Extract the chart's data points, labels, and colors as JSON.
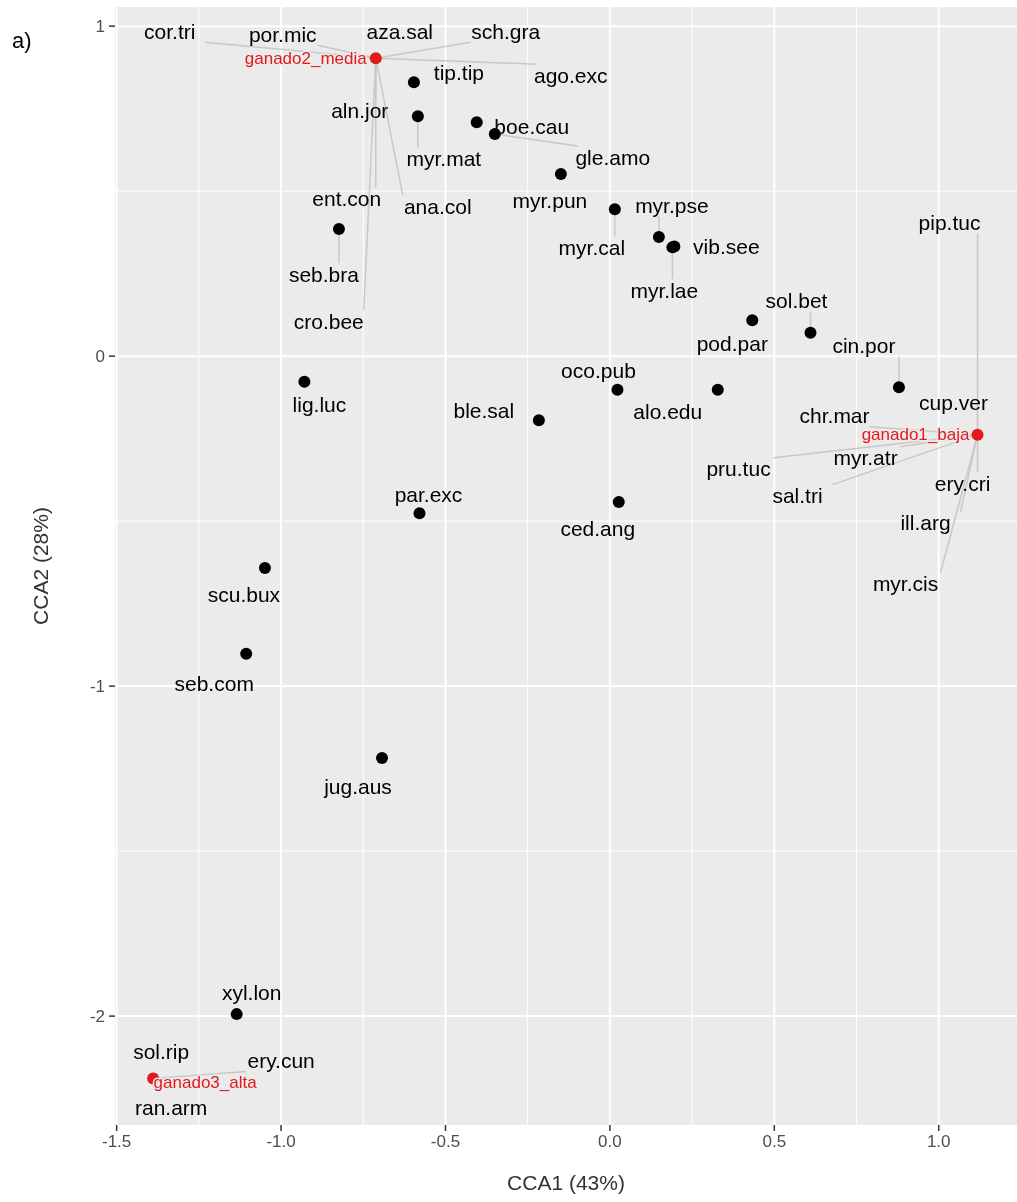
{
  "chart_data": {
    "type": "scatter",
    "title": "a)",
    "xlabel": "CCA1 (43%)",
    "ylabel": "CCA2 (28%)",
    "xlim": [
      -1.505,
      1.238
    ],
    "ylim": [
      -2.33,
      1.058
    ],
    "xticks": [
      {
        "value": -1.5,
        "label": "-1.5"
      },
      {
        "value": -1,
        "label": "-1.0"
      },
      {
        "value": -0.5,
        "label": "-0.5"
      },
      {
        "value": 0,
        "label": "0.0"
      },
      {
        "value": 0.5,
        "label": "0.5"
      },
      {
        "value": 1,
        "label": "1.0"
      }
    ],
    "yticks": [
      -2,
      -1,
      0,
      1
    ],
    "grid": true,
    "marker": "circle",
    "series": [
      {
        "color": "#000000",
        "x": [
          -0.596,
          -0.584,
          -0.405,
          -0.35,
          -0.149,
          -0.824,
          0.015,
          0.149,
          0.196,
          0.19,
          0.61,
          0.433,
          0.879,
          0.023,
          0.328,
          -0.216,
          0.027,
          -0.929,
          -0.579,
          -1.049,
          -1.106,
          -0.693,
          -1.135
        ],
        "values": [
          0.83,
          0.727,
          0.709,
          0.673,
          0.552,
          0.385,
          0.445,
          0.361,
          0.332,
          0.33,
          0.071,
          0.109,
          -0.094,
          -0.102,
          -0.102,
          -0.194,
          -0.442,
          -0.078,
          -0.476,
          -0.642,
          -0.902,
          -1.218,
          -1.994
        ],
        "value_labels": [
          "tip.tip",
          "myr.mat",
          "boe.cau",
          "gle.amo",
          "myr.pun",
          "seb.bra",
          "myr.cal",
          "myr.pse",
          "vib.see",
          "myr.lae",
          "sol.bet",
          "pod.par",
          "cin.por",
          "oco.pub",
          "alo.edu",
          "ble.sal",
          "ced.ang",
          "lig.luc",
          "par.exc",
          "scu.bux",
          "seb.com",
          "jug.aus",
          "xyl.lon"
        ]
      },
      {
        "name": "ganado2_media",
        "color": "#e31a1c",
        "x": [
          -0.712
        ],
        "values": [
          0.903
        ]
      },
      {
        "name": "ganado1_baja",
        "color": "#e31a1c",
        "x": [
          1.118
        ],
        "values": [
          -0.238
        ]
      },
      {
        "name": "ganado3_alta",
        "color": "#e31a1c",
        "x": [
          -1.389
        ],
        "values": [
          -2.189
        ]
      }
    ],
    "annotations": [
      {
        "text": "cor.tri",
        "x": -0.712,
        "y": 0.903
      },
      {
        "text": "por.mic",
        "x": -0.712,
        "y": 0.903
      },
      {
        "text": "aza.sal",
        "x": -0.712,
        "y": 0.903
      },
      {
        "text": "sch.gra",
        "x": -0.712,
        "y": 0.903
      },
      {
        "text": "ago.exc",
        "x": -0.712,
        "y": 0.903
      },
      {
        "text": "aln.jor",
        "x": -0.712,
        "y": 0.903
      },
      {
        "text": "ana.col",
        "x": -0.712,
        "y": 0.903
      },
      {
        "text": "ent.con",
        "x": -0.712,
        "y": 0.903
      },
      {
        "text": "cro.bee",
        "x": -0.712,
        "y": 0.903
      },
      {
        "text": "pip.tuc",
        "x": 1.118,
        "y": -0.238
      },
      {
        "text": "cup.ver",
        "x": 1.118,
        "y": -0.238
      },
      {
        "text": "chr.mar",
        "x": 1.118,
        "y": -0.238
      },
      {
        "text": "myr.atr",
        "x": 1.118,
        "y": -0.238
      },
      {
        "text": "pru.tuc",
        "x": 1.118,
        "y": -0.238
      },
      {
        "text": "sal.tri",
        "x": 1.118,
        "y": -0.238
      },
      {
        "text": "ery.cri",
        "x": 1.118,
        "y": -0.238
      },
      {
        "text": "ill.arg",
        "x": 1.118,
        "y": -0.238
      },
      {
        "text": "myr.cis",
        "x": 1.118,
        "y": -0.238
      },
      {
        "text": "sol.rip",
        "x": -1.389,
        "y": -2.189
      },
      {
        "text": "ery.cun",
        "x": -1.389,
        "y": -2.189
      },
      {
        "text": "ran.arm",
        "x": -1.389,
        "y": -2.189
      }
    ]
  }
}
